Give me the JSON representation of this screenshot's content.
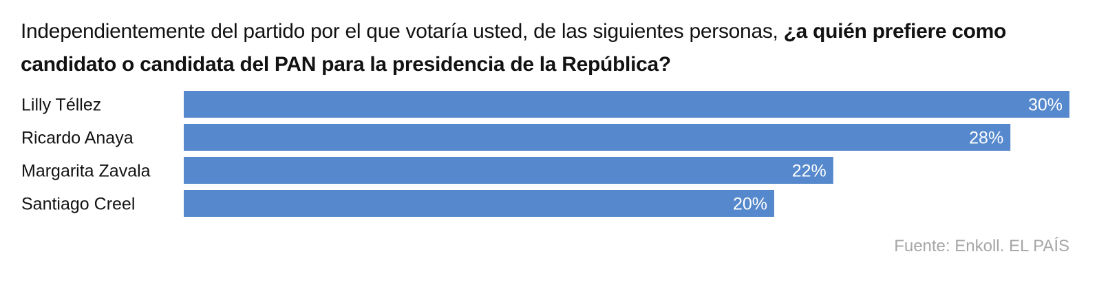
{
  "header": {
    "title_regular": "Independientemente del partido por el que votaría usted, de las siguientes personas, ",
    "title_bold": "¿a quién prefiere como candidato o candidata del PAN para la presidencia de la República?"
  },
  "chart_data": {
    "type": "bar",
    "orientation": "horizontal",
    "categories": [
      "Lilly Téllez",
      "Ricardo Anaya",
      "Margarita Zavala",
      "Santiago Creel"
    ],
    "values": [
      30,
      28,
      22,
      20
    ],
    "value_labels": [
      "30%",
      "28%",
      "22%",
      "20%"
    ],
    "xlim": [
      0,
      30
    ],
    "grid": false,
    "bar_color": "#5588cc"
  },
  "footer": {
    "source": "Fuente: Enkoll. EL PAÍS"
  }
}
